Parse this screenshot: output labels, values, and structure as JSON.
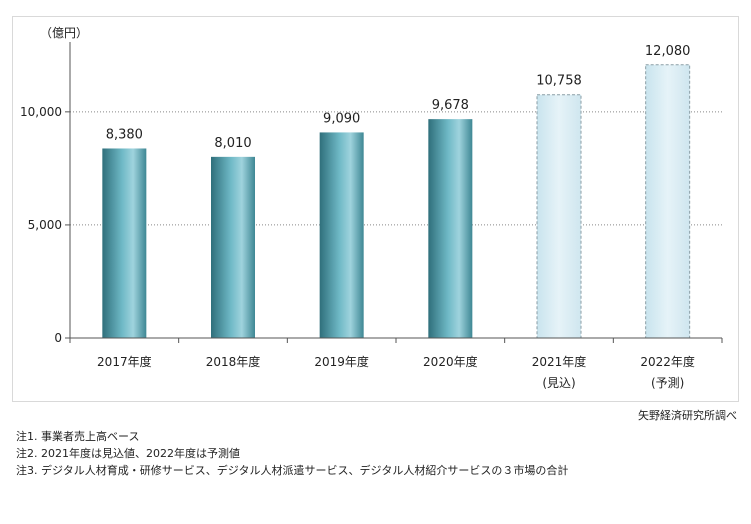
{
  "chart_data": {
    "type": "bar",
    "unit_label": "（億円）",
    "categories": [
      "2017年度",
      "2018年度",
      "2019年度",
      "2020年度",
      "2021年度",
      "2022年度"
    ],
    "category_sublabels": [
      "",
      "",
      "",
      "",
      "(見込)",
      "(予測)"
    ],
    "values": [
      8380,
      8010,
      9090,
      9678,
      10758,
      12080
    ],
    "value_labels": [
      "8,380",
      "8,010",
      "9,090",
      "9,678",
      "10,758",
      "12,080"
    ],
    "bar_styles": [
      "actual",
      "actual",
      "actual",
      "actual",
      "estimate",
      "forecast"
    ],
    "ylim": [
      0,
      13000
    ],
    "yticks": [
      0,
      5000,
      10000
    ],
    "ytick_labels": [
      "0",
      "5,000",
      "10,000"
    ],
    "grid": "horizontal dotted",
    "colors": {
      "actual": "#4a9eac",
      "projected": "#dceef5",
      "projected_border": "#8a9ea6",
      "grid": "#888888"
    }
  },
  "source": "矢野経済研究所調べ",
  "notes": [
    "注1.  事業者売上高ベース",
    "注2.  2021年度は見込値、2022年度は予測値",
    "注3.  デジタル人材育成・研修サービス、デジタル人材派遣サービス、デジタル人材紹介サービスの３市場の合計"
  ]
}
